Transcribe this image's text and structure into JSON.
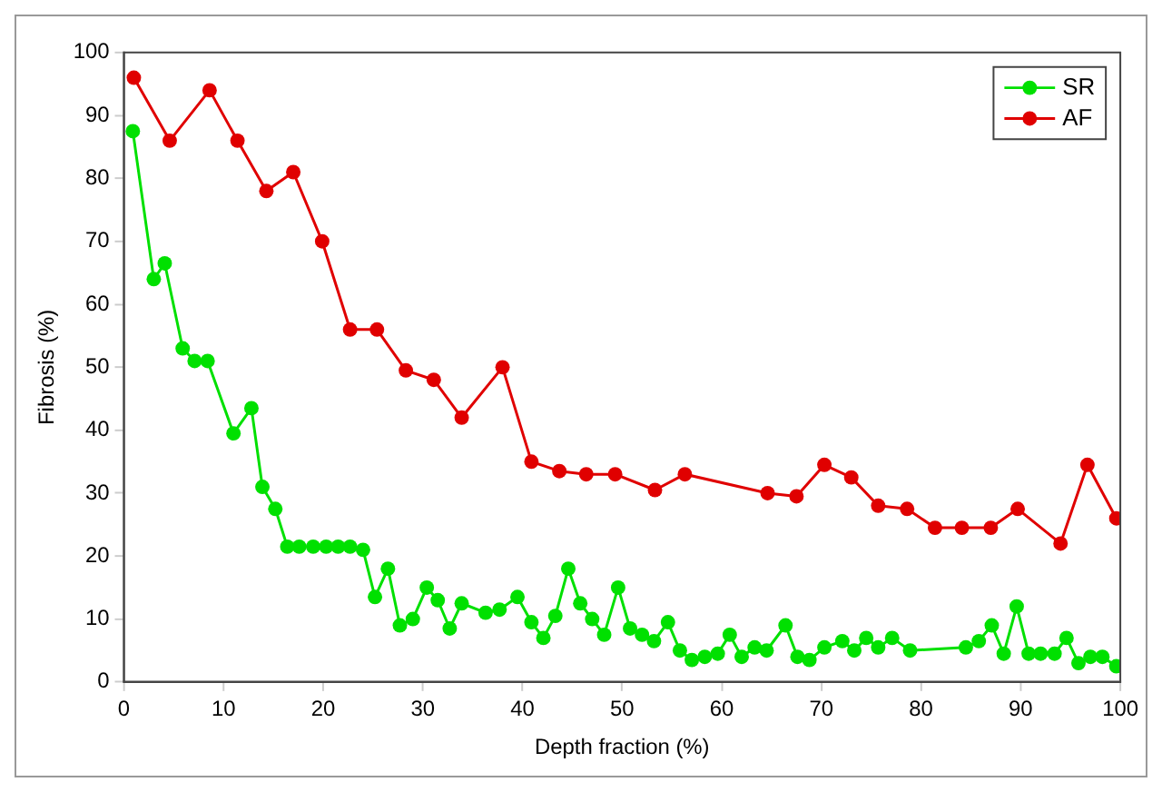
{
  "chart_data": {
    "type": "line",
    "xlabel": "Depth fraction (%)",
    "ylabel": "Fibrosis (%)",
    "xlim": [
      0,
      100
    ],
    "xticks": [
      0,
      10,
      20,
      30,
      40,
      50,
      60,
      70,
      80,
      90,
      100
    ],
    "ylim": [
      0,
      100
    ],
    "yticks": [
      0,
      10,
      20,
      30,
      40,
      50,
      60,
      70,
      80,
      90,
      100
    ],
    "grid": false,
    "legend": "top right",
    "marker": "circle",
    "line_style": "solid",
    "series": [
      {
        "name": "SR",
        "color": "#00e000",
        "x": [
          0.9,
          3,
          4.1,
          5.9,
          7.1,
          8.4,
          11,
          12.8,
          13.9,
          15.2,
          16.4,
          17.6,
          19,
          20.3,
          21.5,
          22.7,
          24,
          25.2,
          26.5,
          27.7,
          29,
          30.4,
          31.5,
          32.7,
          33.9,
          36.3,
          37.7,
          39.5,
          40.9,
          42.1,
          43.3,
          44.6,
          45.8,
          47,
          48.2,
          49.6,
          50.8,
          52,
          53.2,
          54.6,
          55.8,
          57,
          58.3,
          59.6,
          60.8,
          62,
          63.3,
          64.5,
          66.4,
          67.6,
          68.8,
          70.3,
          72.1,
          73.3,
          74.5,
          75.7,
          77.1,
          78.9,
          84.5,
          85.8,
          87.1,
          88.3,
          89.6,
          90.8,
          92,
          93.4,
          94.6,
          95.8,
          97,
          98.2,
          99.6
        ],
        "values": [
          87.5,
          64,
          66.5,
          53,
          51,
          51,
          39.5,
          43.5,
          31,
          27.5,
          21.5,
          21.5,
          21.5,
          21.5,
          21.5,
          21.5,
          21,
          13.5,
          18,
          9,
          10,
          15,
          13,
          8.5,
          12.5,
          11,
          11.5,
          13.5,
          9.5,
          7,
          10.5,
          18,
          12.5,
          10,
          7.5,
          15,
          8.5,
          7.5,
          6.5,
          9.5,
          5,
          3.5,
          4,
          4.5,
          7.5,
          4,
          5.5,
          5,
          9,
          4,
          3.5,
          5.5,
          6.5,
          5,
          7,
          5.5,
          7,
          5,
          5.5,
          6.5,
          9,
          4.5,
          12,
          4.5,
          4.5,
          4.5,
          7,
          3,
          4,
          4,
          2.5
        ]
      },
      {
        "name": "AF",
        "color": "#e00000",
        "x": [
          1,
          4.6,
          8.6,
          11.4,
          14.3,
          17,
          19.9,
          22.7,
          25.4,
          28.3,
          31.1,
          33.9,
          38,
          40.9,
          43.7,
          46.4,
          49.3,
          53.3,
          56.3,
          64.6,
          67.5,
          70.3,
          73,
          75.7,
          78.6,
          81.4,
          84.1,
          87,
          89.7,
          94,
          96.7,
          99.6
        ],
        "values": [
          96,
          86,
          94,
          86,
          78,
          81,
          70,
          56,
          56,
          49.5,
          48,
          42,
          50,
          35,
          33.5,
          33,
          33,
          30.5,
          33,
          30,
          29.5,
          34.5,
          32.5,
          28,
          27.5,
          24.5,
          24.5,
          24.5,
          27.5,
          22,
          34.5,
          26
        ]
      }
    ]
  }
}
